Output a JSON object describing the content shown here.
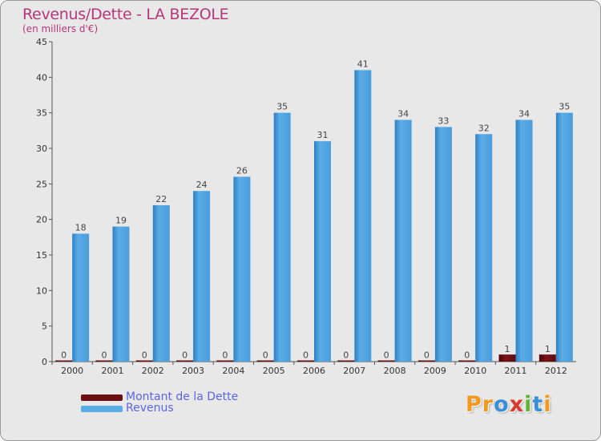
{
  "title": "Revenus/Dette - LA BEZOLE",
  "subtitle": "(en milliers d'€)",
  "colors": {
    "debt": "#6b0f14",
    "revenue": "#5aace6",
    "revenue_dark": "#2f80c4",
    "title": "#b5377a",
    "legend_text": "#5a66e0"
  },
  "legend": [
    {
      "label": "Montant de la Dette",
      "color": "#6b0f14"
    },
    {
      "label": "Revenus",
      "color": "#5aace6"
    }
  ],
  "logo": "Proxiti",
  "chart_data": {
    "type": "bar",
    "title": "Revenus/Dette - LA BEZOLE",
    "ylabel": "(en milliers d'€)",
    "xlabel": "",
    "categories": [
      "2000",
      "2001",
      "2002",
      "2003",
      "2004",
      "2005",
      "2006",
      "2007",
      "2008",
      "2009",
      "2010",
      "2011",
      "2012"
    ],
    "series": [
      {
        "name": "Montant de la Dette",
        "values": [
          0,
          0,
          0,
          0,
          0,
          0,
          0,
          0,
          0,
          0,
          0,
          1,
          1
        ]
      },
      {
        "name": "Revenus",
        "values": [
          18,
          19,
          22,
          24,
          26,
          35,
          31,
          41,
          34,
          33,
          32,
          34,
          35
        ]
      }
    ],
    "ylim": [
      0,
      45
    ],
    "yticks": [
      0,
      5,
      10,
      15,
      20,
      25,
      30,
      35,
      40,
      45
    ],
    "grid": false,
    "legend_position": "bottom-left"
  }
}
